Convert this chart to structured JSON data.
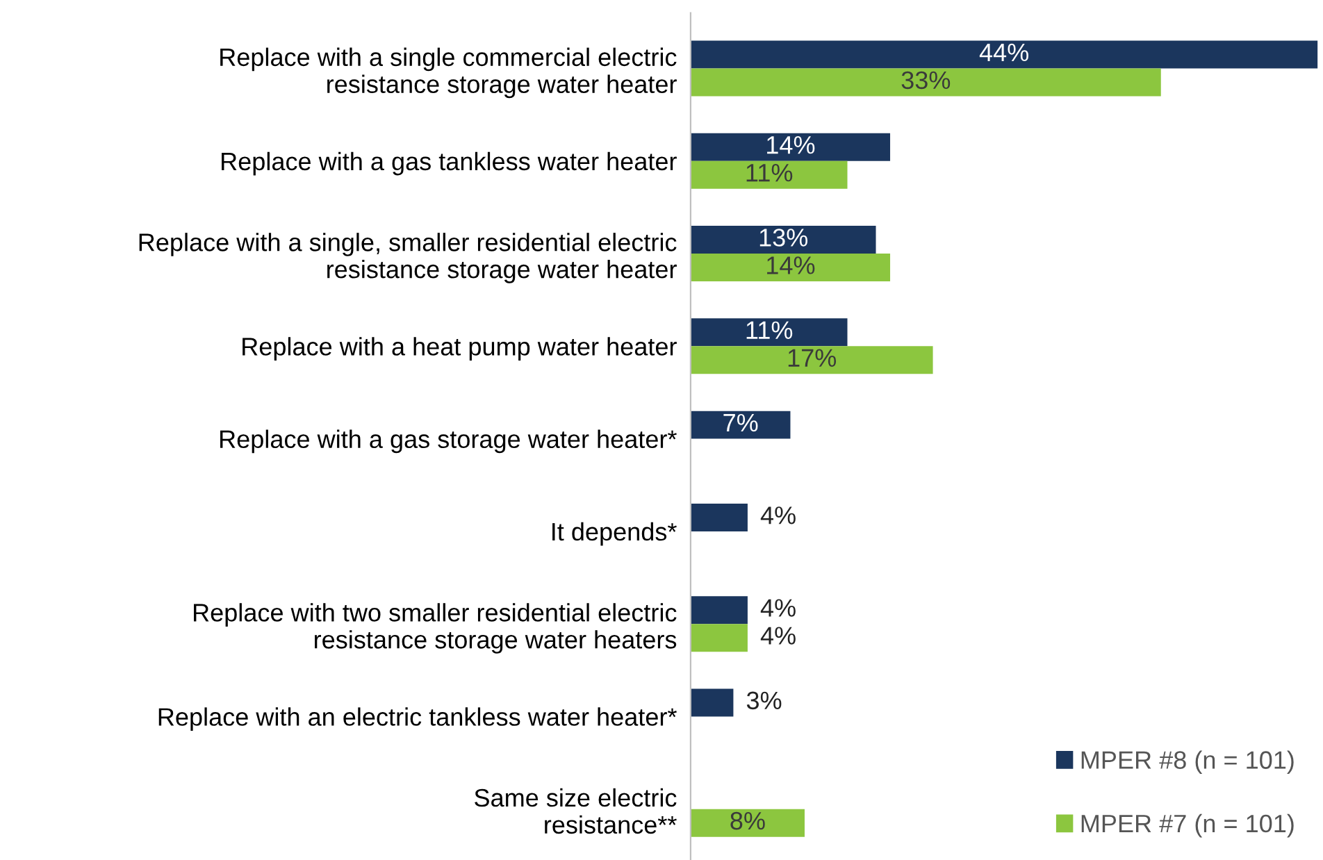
{
  "chart_data": {
    "type": "bar",
    "orientation": "horizontal",
    "xlim": [
      0,
      44
    ],
    "tick_labels": "y",
    "legend": "bottom right",
    "grid": false,
    "categories": [
      "Replace with a single commercial electric\nresistance storage water heater",
      "Replace with a gas tankless water heater",
      "Replace with a single, smaller residential electric\nresistance storage water heater",
      "Replace with a heat pump water heater",
      "Replace with a gas storage water heater*",
      "It depends*",
      "Replace with two smaller residential electric\nresistance storage water heaters",
      "Replace with an electric tankless water heater*",
      "Same size electric\nresistance**"
    ],
    "series": [
      {
        "name": "MPER #8 (n = 101)",
        "color": "#1b365d",
        "values": [
          44,
          14,
          13,
          11,
          7,
          4,
          4,
          3,
          null
        ],
        "value_labels": [
          "44%",
          "14%",
          "13%",
          "11%",
          "7%",
          "4%",
          "4%",
          "3%",
          null
        ]
      },
      {
        "name": "MPER #7 (n = 101)",
        "color": "#8cc63f",
        "values": [
          33,
          11,
          14,
          17,
          null,
          null,
          4,
          null,
          8
        ],
        "value_labels": [
          "33%",
          "11%",
          "14%",
          "17%",
          null,
          null,
          "4%",
          null,
          "8%"
        ]
      }
    ]
  }
}
